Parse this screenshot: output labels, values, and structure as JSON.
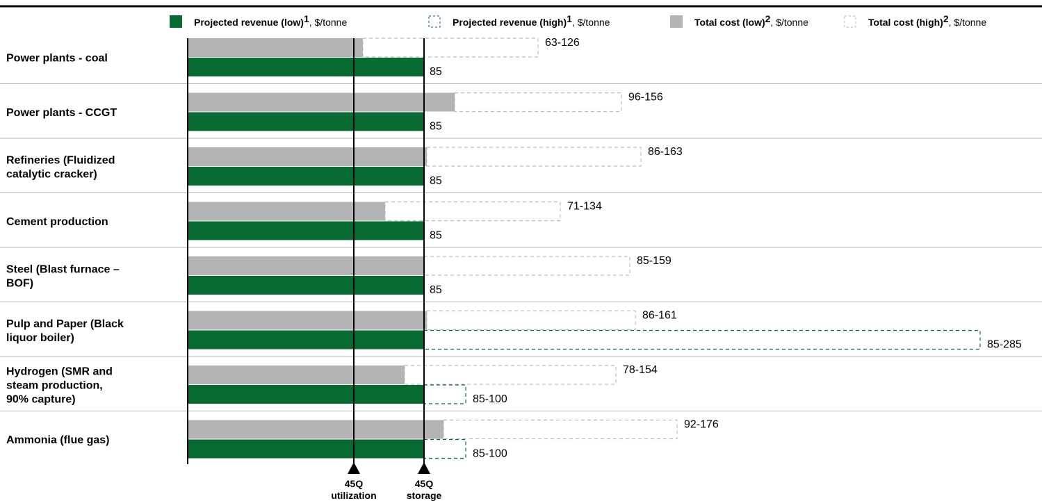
{
  "chart_data": {
    "type": "bar",
    "orientation": "horizontal",
    "legend": [
      {
        "name": "Projected revenue (low)",
        "sup": "1",
        "unit": ", $/tonne",
        "style": "solid",
        "color": "#066a31"
      },
      {
        "name": "Projected revenue (high)",
        "sup": "1",
        "unit": ", $/tonne",
        "style": "dashed",
        "color": "#066a31"
      },
      {
        "name": "Total cost (low)",
        "sup": "2",
        "unit": ", $/tonne",
        "style": "solid",
        "color": "#b3b3b3"
      },
      {
        "name": "Total cost (high)",
        "sup": "2",
        "unit": ", $/tonne",
        "style": "dashed",
        "color": "#b3b3b3"
      }
    ],
    "legend_placement": "top",
    "categories": [
      {
        "lines": [
          "Power plants - coal"
        ],
        "cost_low": 63,
        "cost_high": 126,
        "cost_label": "63-126",
        "rev_low": 85,
        "rev_high": 85,
        "rev_label": "85"
      },
      {
        "lines": [
          "Power plants - CCGT"
        ],
        "cost_low": 96,
        "cost_high": 156,
        "cost_label": "96-156",
        "rev_low": 85,
        "rev_high": 85,
        "rev_label": "85"
      },
      {
        "lines": [
          "Refineries (Fluidized",
          "catalytic cracker)"
        ],
        "cost_low": 86,
        "cost_high": 163,
        "cost_label": "86-163",
        "rev_low": 85,
        "rev_high": 85,
        "rev_label": "85"
      },
      {
        "lines": [
          "Cement production"
        ],
        "cost_low": 71,
        "cost_high": 134,
        "cost_label": "71-134",
        "rev_low": 85,
        "rev_high": 85,
        "rev_label": "85"
      },
      {
        "lines": [
          "Steel (Blast furnace –",
          "BOF)"
        ],
        "cost_low": 85,
        "cost_high": 159,
        "cost_label": "85-159",
        "rev_low": 85,
        "rev_high": 85,
        "rev_label": "85"
      },
      {
        "lines": [
          "Pulp and Paper (Black",
          "liquor boiler)"
        ],
        "cost_low": 86,
        "cost_high": 161,
        "cost_label": "86-161",
        "rev_low": 85,
        "rev_high": 285,
        "rev_label": "85-285"
      },
      {
        "lines": [
          "Hydrogen (SMR and",
          "steam production,",
          "90% capture)"
        ],
        "cost_low": 78,
        "cost_high": 154,
        "cost_label": "78-154",
        "rev_low": 85,
        "rev_high": 100,
        "rev_label": "85-100"
      },
      {
        "lines": [
          "Ammonia (flue gas)"
        ],
        "cost_low": 92,
        "cost_high": 176,
        "cost_label": "92-176",
        "rev_low": 85,
        "rev_high": 100,
        "rev_label": "85-100"
      }
    ],
    "reference_lines": [
      {
        "value": 60,
        "lines": [
          "45Q",
          "utilization"
        ]
      },
      {
        "value": 85,
        "lines": [
          "45Q",
          "storage"
        ]
      }
    ],
    "xlim": [
      0,
      285
    ],
    "grid": false
  }
}
